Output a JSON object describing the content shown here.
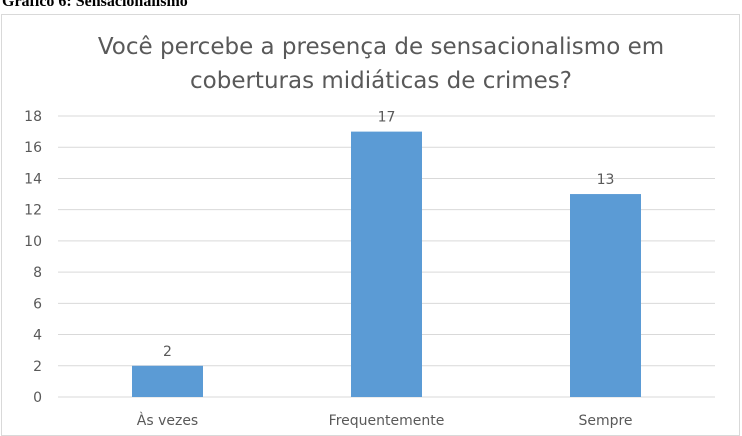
{
  "caption": "Gráfico 6: Sensacionalismo",
  "chart_data": {
    "type": "bar",
    "title_lines": [
      "Você percebe a presença de sensacionalismo em",
      "coberturas midiáticas de crimes?"
    ],
    "categories": [
      "Às vezes",
      "Frequentemente",
      "Sempre"
    ],
    "values": [
      2,
      17,
      13
    ],
    "ylim": [
      0,
      18
    ],
    "yticks": [
      0,
      2,
      4,
      6,
      8,
      10,
      12,
      14,
      16,
      18
    ],
    "grid": true,
    "data_labels": true,
    "bar_color": "#5b9bd5",
    "grid_color": "#d9d9d9",
    "text_color": "#595959"
  }
}
